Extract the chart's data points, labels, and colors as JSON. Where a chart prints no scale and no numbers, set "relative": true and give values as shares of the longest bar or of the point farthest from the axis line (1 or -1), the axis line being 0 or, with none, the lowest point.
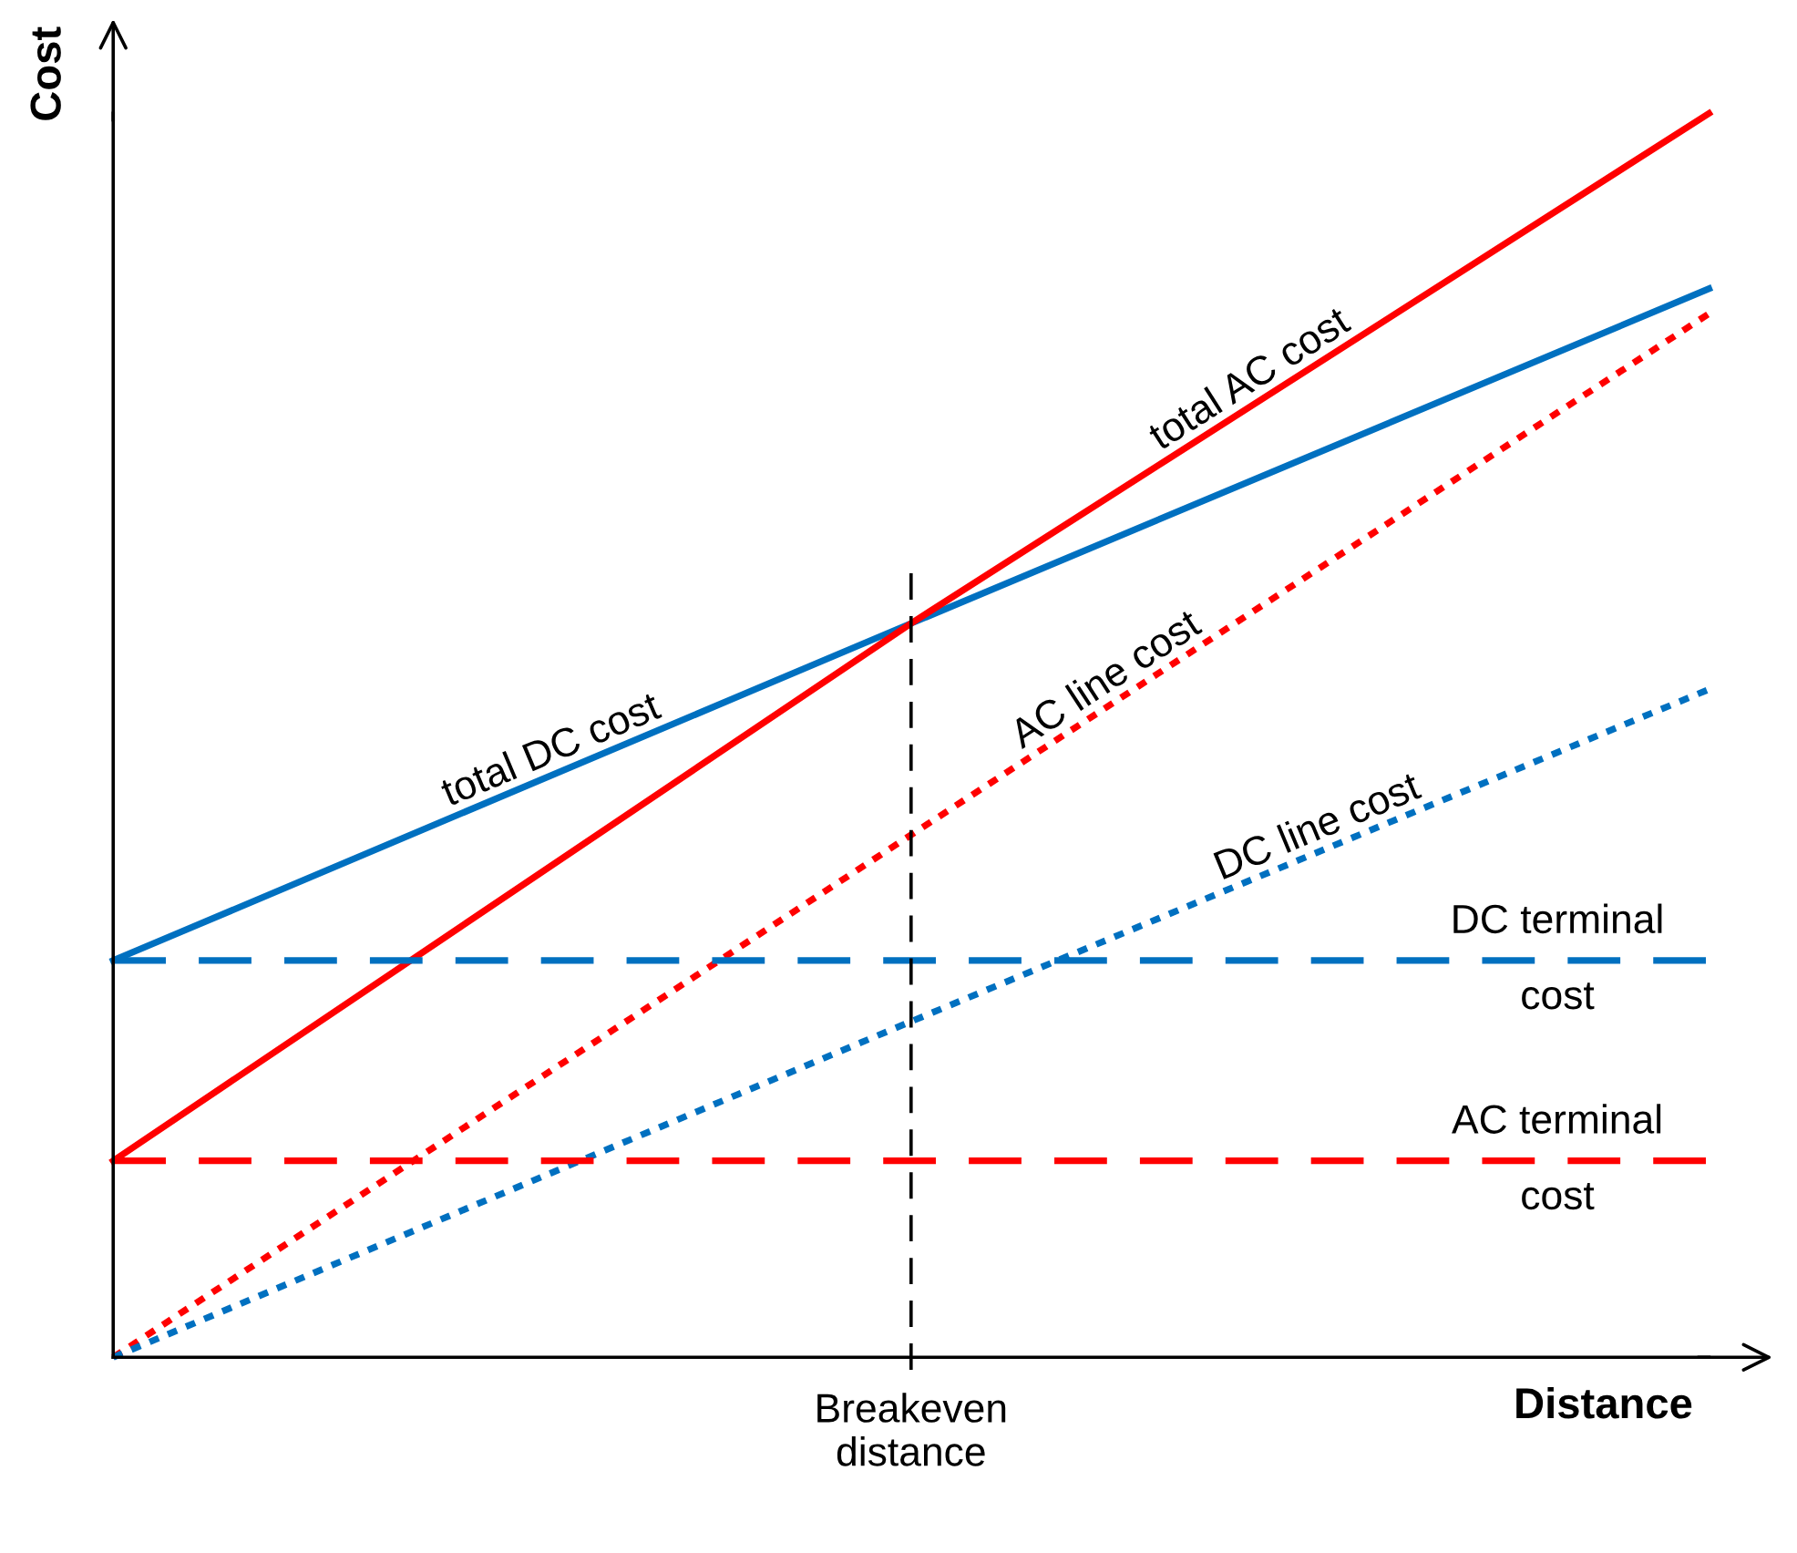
{
  "chart_data": {
    "type": "line",
    "relative": true,
    "xlabel": "Distance",
    "ylabel": "Cost",
    "categories": [
      null,
      null,
      null
    ],
    "series": [
      {
        "name": "total DC cost",
        "color": "#0070c0",
        "values": [
          0.319,
          0.59,
          0.859
        ],
        "line_style": "solid"
      },
      {
        "name": "total AC cost",
        "color": "#ff0000",
        "values": [
          0.158,
          0.59,
          1
        ],
        "line_style": "solid"
      },
      {
        "name": "AC line cost",
        "color": "#ff0000",
        "values": [
          0,
          0.42,
          0.839
        ],
        "line_style": "dotted"
      },
      {
        "name": "DC line cost",
        "color": "#0070c0",
        "values": [
          0,
          0.27,
          0.537
        ],
        "line_style": "dotted"
      },
      {
        "name": "DC terminal\ncost",
        "color": "#0070c0",
        "values": [
          0.319,
          0.319,
          0.319
        ],
        "line_style": "dashed"
      },
      {
        "name": "AC terminal\ncost",
        "color": "#ff0000",
        "values": [
          0.158,
          0.158,
          0.158
        ],
        "line_style": "dashed"
      }
    ],
    "annotations": [
      "Breakeven\ndistance"
    ]
  }
}
